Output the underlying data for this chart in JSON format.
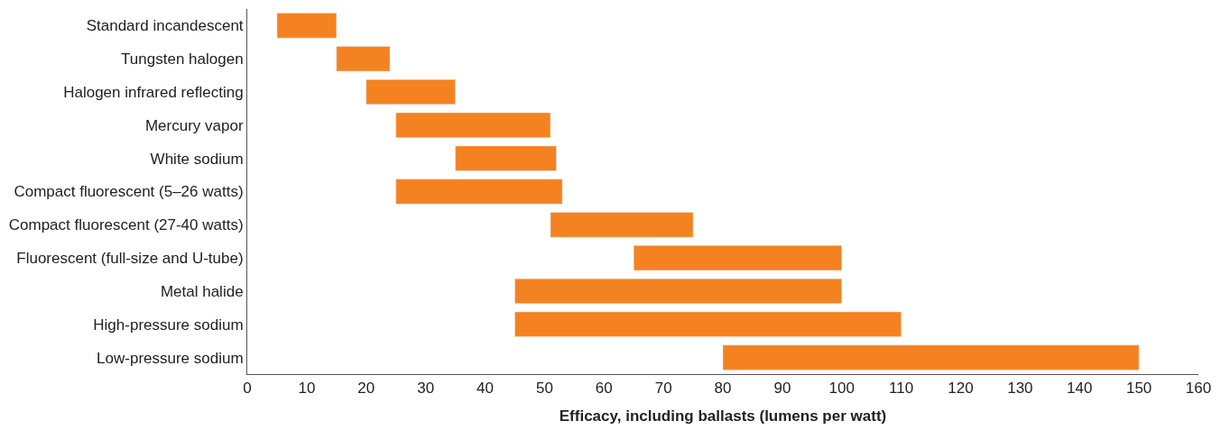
{
  "chart_data": {
    "type": "bar",
    "orientation": "horizontal",
    "xlabel": "Efficacy, including ballasts (lumens per watt)",
    "categories": [
      "Standard incandescent",
      "Tungsten halogen",
      "Halogen infrared reflecting",
      "Mercury vapor",
      "White sodium",
      "Compact fluorescent (5–26 watts)",
      "Compact fluorescent (27-40 watts)",
      "Fluorescent (full-size and U-tube)",
      "Metal halide",
      "High-pressure sodium",
      "Low-pressure sodium"
    ],
    "base": [
      5,
      15,
      20,
      25,
      35,
      25,
      51,
      65,
      45,
      45,
      80
    ],
    "values": [
      10,
      9,
      15,
      26,
      17,
      28,
      24,
      35,
      55,
      65,
      70
    ],
    "color": "#f58220",
    "xlim": [
      0,
      160
    ],
    "xticks": [
      0,
      10,
      20,
      30,
      40,
      50,
      60,
      70,
      80,
      90,
      100,
      110,
      120,
      130,
      140,
      150,
      160
    ],
    "legend": false
  }
}
